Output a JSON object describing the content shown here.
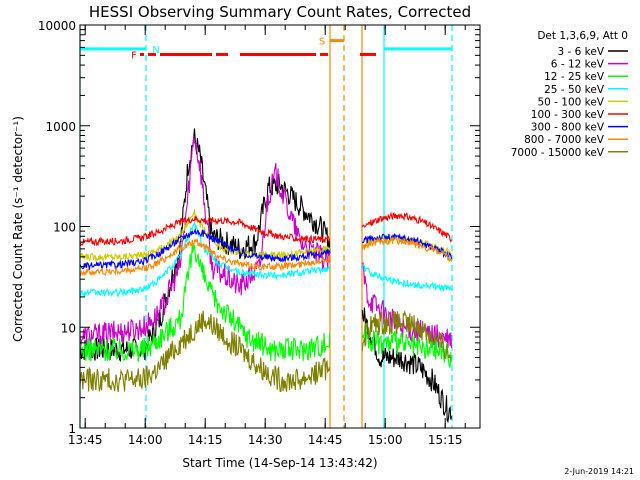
{
  "chart_data": {
    "type": "line",
    "title": "HESSI Observing Summary Count Rates, Corrected",
    "xlabel": "Start Time (14-Sep-14 13:43:42)",
    "ylabel": "Corrected Count Rate (s⁻¹ detector⁻¹)",
    "ylog": true,
    "ylim": [
      1,
      10000
    ],
    "y_ticks": [
      {
        "value": 1,
        "label": "1"
      },
      {
        "value": 10,
        "label": "10"
      },
      {
        "value": 100,
        "label": "100"
      },
      {
        "value": 1000,
        "label": "1000"
      },
      {
        "value": 10000,
        "label": "10000"
      }
    ],
    "x_range_minutes": [
      0,
      100
    ],
    "x_ticks": [
      {
        "minutes": 1.3,
        "label": "13:45"
      },
      {
        "minutes": 16.3,
        "label": "14:00"
      },
      {
        "minutes": 31.3,
        "label": "14:15"
      },
      {
        "minutes": 46.3,
        "label": "14:30"
      },
      {
        "minutes": 61.3,
        "label": "14:45"
      },
      {
        "minutes": 76.3,
        "label": "15:00"
      },
      {
        "minutes": 91.3,
        "label": "15:15"
      }
    ],
    "legend_title": "Det 1,3,6,9, Att 0",
    "legend_placement": "right",
    "gap_minutes": [
      62.5,
      70.5
    ],
    "series": [
      {
        "name": "3 - 6 keV",
        "color": "#000000",
        "x": [
          0,
          10,
          16,
          20,
          25,
          27,
          28.5,
          30,
          33,
          40,
          44,
          47,
          50,
          55,
          60,
          62,
          70.5,
          72,
          75,
          80,
          85,
          88,
          92,
          93
        ],
        "y": [
          6,
          6,
          6,
          12,
          60,
          400,
          780,
          500,
          80,
          60,
          70,
          240,
          260,
          160,
          100,
          75,
          14,
          10,
          5,
          5,
          4,
          3,
          1.5,
          1.5
        ]
      },
      {
        "name": "6 - 12 keV",
        "color": "#cc00cc",
        "x": [
          0,
          10,
          16,
          20,
          25,
          27,
          28.5,
          30,
          33,
          40,
          45,
          47,
          49,
          52,
          55,
          60,
          62,
          70.5,
          72,
          75,
          80,
          85,
          90,
          93
        ],
        "y": [
          8,
          9,
          10,
          14,
          40,
          200,
          850,
          400,
          40,
          25,
          40,
          200,
          330,
          150,
          70,
          50,
          45,
          40,
          20,
          15,
          10,
          9,
          8,
          7
        ]
      },
      {
        "name": "12 - 25 keV",
        "color": "#00ff00",
        "x": [
          0,
          10,
          16,
          20,
          25,
          27,
          28.5,
          30,
          33,
          38,
          42,
          48,
          55,
          62,
          70.5,
          72,
          75,
          80,
          85,
          90,
          93
        ],
        "y": [
          6,
          6,
          6,
          8,
          12,
          30,
          70,
          40,
          20,
          12,
          8,
          6,
          6,
          7,
          9,
          8,
          7,
          7,
          6,
          6,
          5
        ]
      },
      {
        "name": "25 - 50 keV",
        "color": "#00ffff",
        "x": [
          0,
          10,
          16,
          20,
          25,
          28.5,
          31,
          35,
          40,
          45,
          50,
          55,
          62,
          70.5,
          72,
          75,
          80,
          85,
          90,
          93
        ],
        "y": [
          22,
          22,
          24,
          30,
          50,
          110,
          60,
          42,
          35,
          33,
          33,
          35,
          38,
          40,
          36,
          32,
          28,
          26,
          25,
          24
        ]
      },
      {
        "name": "50 - 100 keV",
        "color": "#cccc00",
        "x": [
          0,
          10,
          16,
          20,
          25,
          28.5,
          31,
          35,
          40,
          45,
          50,
          55,
          62,
          70.5,
          72,
          75,
          80,
          85,
          90,
          93
        ],
        "y": [
          50,
          50,
          52,
          60,
          80,
          140,
          90,
          60,
          55,
          52,
          52,
          55,
          60,
          65,
          70,
          75,
          75,
          70,
          60,
          55
        ]
      },
      {
        "name": "100 - 300 keV",
        "color": "#ff0000",
        "x": [
          0,
          10,
          16,
          20,
          25,
          28.5,
          31,
          35,
          40,
          45,
          50,
          55,
          62,
          70.5,
          72,
          75,
          80,
          85,
          90,
          93
        ],
        "y": [
          70,
          72,
          78,
          90,
          110,
          120,
          115,
          115,
          110,
          90,
          80,
          75,
          75,
          95,
          105,
          120,
          130,
          115,
          90,
          75
        ]
      },
      {
        "name": "300 - 800 keV",
        "color": "#0000ff",
        "x": [
          0,
          10,
          16,
          20,
          25,
          28.5,
          31,
          35,
          40,
          45,
          50,
          55,
          62,
          70.5,
          72,
          75,
          80,
          85,
          90,
          93
        ],
        "y": [
          40,
          42,
          45,
          55,
          75,
          90,
          85,
          70,
          55,
          50,
          48,
          50,
          55,
          70,
          75,
          78,
          78,
          70,
          58,
          48
        ]
      },
      {
        "name": "800 - 7000 keV",
        "color": "#ff8800",
        "x": [
          0,
          10,
          16,
          20,
          25,
          28.5,
          31,
          35,
          40,
          45,
          50,
          55,
          62,
          70.5,
          72,
          75,
          80,
          85,
          90,
          93
        ],
        "y": [
          35,
          36,
          38,
          45,
          60,
          70,
          65,
          50,
          42,
          40,
          40,
          42,
          48,
          60,
          66,
          72,
          72,
          65,
          55,
          45
        ]
      },
      {
        "name": "7000 - 15000 keV",
        "color": "#808000",
        "x": [
          0,
          10,
          16,
          20,
          25,
          31,
          35,
          40,
          45,
          50,
          55,
          62,
          70.5,
          72,
          75,
          80,
          85,
          90,
          93
        ],
        "y": [
          3,
          3,
          3,
          4,
          7,
          12,
          9,
          6,
          4,
          3,
          3,
          4,
          7,
          10,
          11,
          11,
          10,
          7,
          5
        ]
      }
    ],
    "flag_bars": [
      {
        "label": "N",
        "color": "#00ffff",
        "value": 5800,
        "segments": [
          [
            0,
            16.5
          ],
          [
            76,
            93
          ]
        ]
      },
      {
        "label": "F",
        "color": "#ff0000",
        "value": 5100,
        "segments": [
          [
            15,
            16
          ],
          [
            17,
            19
          ],
          [
            20,
            33
          ],
          [
            34,
            37
          ],
          [
            40,
            59
          ],
          [
            60,
            62
          ],
          [
            70,
            74
          ]
        ]
      },
      {
        "label": "S",
        "color": "#ff8800",
        "value": 7000,
        "segments": [
          [
            62.5,
            66
          ]
        ]
      }
    ],
    "markers": [
      {
        "minutes": 0,
        "color": "#00ffff",
        "style": "solid"
      },
      {
        "minutes": 16.5,
        "color": "#00ffff",
        "style": "dashed"
      },
      {
        "minutes": 76,
        "color": "#00ffff",
        "style": "solid"
      },
      {
        "minutes": 93,
        "color": "#00ffff",
        "style": "dashed"
      },
      {
        "minutes": 62.5,
        "color": "#ff8800",
        "style": "solid"
      },
      {
        "minutes": 66,
        "color": "#ff8800",
        "style": "dashed"
      },
      {
        "minutes": 70.5,
        "color": "#ff8800",
        "style": "solid"
      }
    ],
    "footer_date": "2-Jun-2019 14:21"
  }
}
